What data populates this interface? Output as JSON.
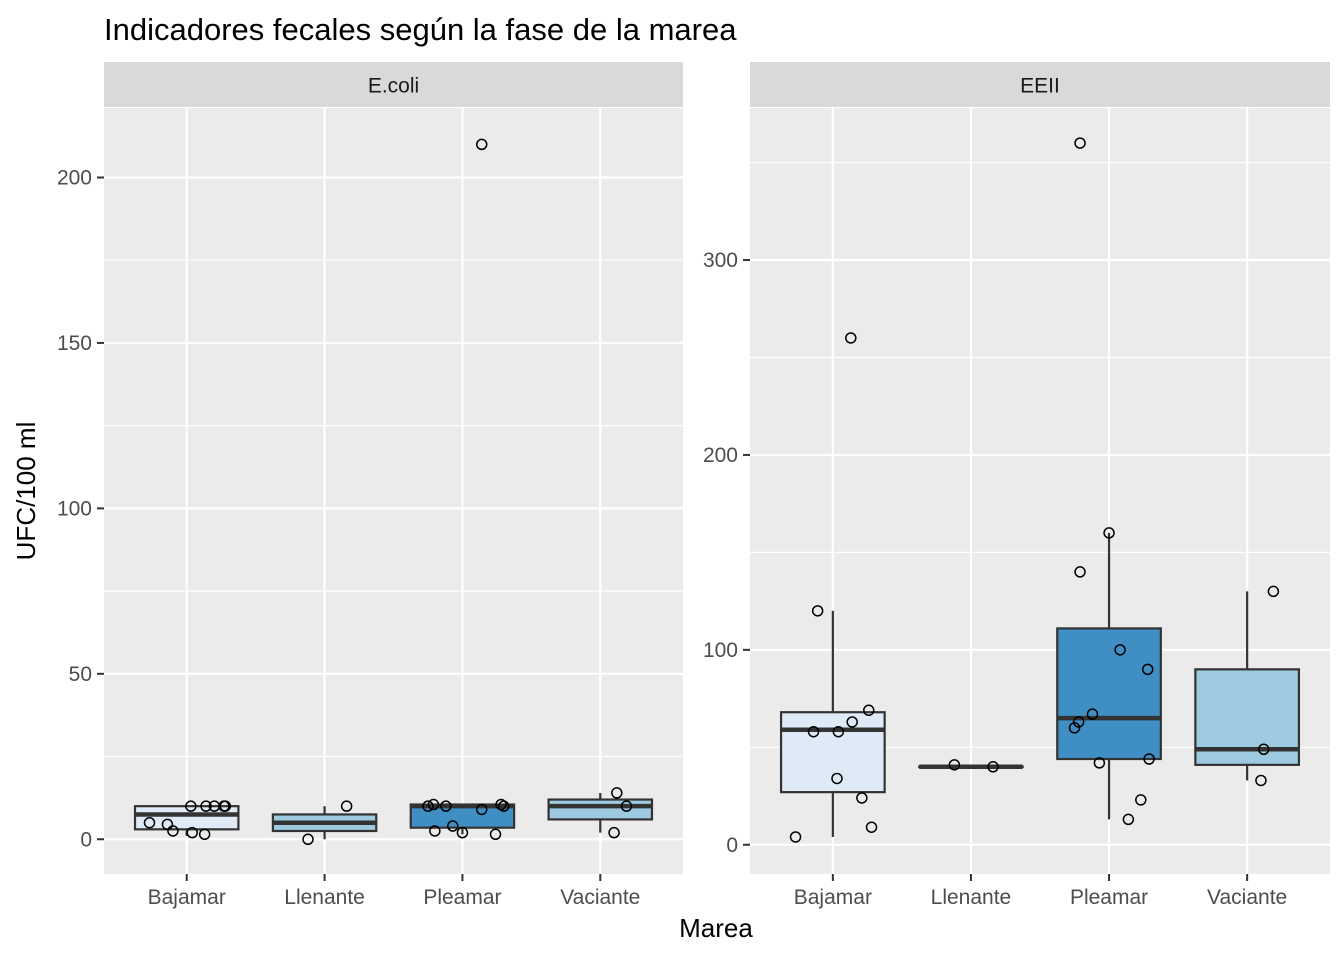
{
  "chart_data": {
    "type": "boxplot",
    "title": "Indicadores fecales según la fase de la marea",
    "xlabel": "Marea",
    "ylabel": "UFC/100 ml",
    "categories": [
      "Bajamar",
      "Llenante",
      "Pleamar",
      "Vaciante"
    ],
    "fill_colors": {
      "Bajamar": "#deebf7",
      "Llenante": "#9ecae1",
      "Pleamar": "#3f8fc4",
      "Vaciante": "#9ecae1"
    },
    "panels": [
      {
        "name": "E.coli",
        "ylim": [
          -10.5,
          221
        ],
        "yticks": [
          0,
          50,
          100,
          150,
          200
        ],
        "boxes": [
          {
            "category": "Bajamar",
            "q1": 3,
            "median": 7.5,
            "q3": 10,
            "whisker_low": 1,
            "whisker_high": 10
          },
          {
            "category": "Llenante",
            "q1": 2.5,
            "median": 5,
            "q3": 7.5,
            "whisker_low": 0,
            "whisker_high": 10
          },
          {
            "category": "Pleamar",
            "q1": 3.5,
            "median": 10,
            "q3": 10.5,
            "whisker_low": 1.5,
            "whisker_high": 10.5
          },
          {
            "category": "Vaciante",
            "q1": 6,
            "median": 10,
            "q3": 12,
            "whisker_low": 2,
            "whisker_high": 14
          }
        ],
        "points": [
          {
            "category": "Bajamar",
            "offset": -0.27,
            "value": 5
          },
          {
            "category": "Bajamar",
            "offset": -0.14,
            "value": 4.5
          },
          {
            "category": "Bajamar",
            "offset": -0.1,
            "value": 2.5
          },
          {
            "category": "Bajamar",
            "offset": 0.03,
            "value": 10
          },
          {
            "category": "Bajamar",
            "offset": 0.04,
            "value": 2
          },
          {
            "category": "Bajamar",
            "offset": 0.13,
            "value": 1.5
          },
          {
            "category": "Bajamar",
            "offset": 0.14,
            "value": 10
          },
          {
            "category": "Bajamar",
            "offset": 0.2,
            "value": 10
          },
          {
            "category": "Bajamar",
            "offset": 0.27,
            "value": 10
          },
          {
            "category": "Bajamar",
            "offset": 0.28,
            "value": 10
          },
          {
            "category": "Llenante",
            "offset": -0.12,
            "value": 0
          },
          {
            "category": "Llenante",
            "offset": 0.16,
            "value": 10
          },
          {
            "category": "Pleamar",
            "offset": -0.25,
            "value": 10
          },
          {
            "category": "Pleamar",
            "offset": -0.21,
            "value": 10.5
          },
          {
            "category": "Pleamar",
            "offset": -0.2,
            "value": 2.5
          },
          {
            "category": "Pleamar",
            "offset": -0.12,
            "value": 10
          },
          {
            "category": "Pleamar",
            "offset": -0.07,
            "value": 4
          },
          {
            "category": "Pleamar",
            "offset": 0.0,
            "value": 2
          },
          {
            "category": "Pleamar",
            "offset": 0.14,
            "value": 9
          },
          {
            "category": "Pleamar",
            "offset": 0.14,
            "value": 210
          },
          {
            "category": "Pleamar",
            "offset": 0.24,
            "value": 1.5
          },
          {
            "category": "Pleamar",
            "offset": 0.28,
            "value": 10.5
          },
          {
            "category": "Pleamar",
            "offset": 0.3,
            "value": 10
          },
          {
            "category": "Vaciante",
            "offset": 0.1,
            "value": 2
          },
          {
            "category": "Vaciante",
            "offset": 0.12,
            "value": 14
          },
          {
            "category": "Vaciante",
            "offset": 0.19,
            "value": 10
          }
        ]
      },
      {
        "name": "EEII",
        "ylim": [
          -15,
          378
        ],
        "yticks": [
          0,
          100,
          200,
          300
        ],
        "boxes": [
          {
            "category": "Bajamar",
            "q1": 27,
            "median": 59,
            "q3": 68,
            "whisker_low": 4,
            "whisker_high": 120
          },
          {
            "category": "Llenante",
            "q1": 40,
            "median": 40,
            "q3": 40,
            "whisker_low": 40,
            "whisker_high": 40
          },
          {
            "category": "Pleamar",
            "q1": 44,
            "median": 65,
            "q3": 111,
            "whisker_low": 13,
            "whisker_high": 160
          },
          {
            "category": "Vaciante",
            "q1": 41,
            "median": 49,
            "q3": 90,
            "whisker_low": 33,
            "whisker_high": 130
          }
        ],
        "points": [
          {
            "category": "Bajamar",
            "offset": -0.27,
            "value": 4
          },
          {
            "category": "Bajamar",
            "offset": -0.14,
            "value": 58
          },
          {
            "category": "Bajamar",
            "offset": -0.11,
            "value": 120
          },
          {
            "category": "Bajamar",
            "offset": 0.03,
            "value": 34
          },
          {
            "category": "Bajamar",
            "offset": 0.04,
            "value": 58
          },
          {
            "category": "Bajamar",
            "offset": 0.13,
            "value": 260
          },
          {
            "category": "Bajamar",
            "offset": 0.14,
            "value": 63
          },
          {
            "category": "Bajamar",
            "offset": 0.21,
            "value": 24
          },
          {
            "category": "Bajamar",
            "offset": 0.26,
            "value": 69
          },
          {
            "category": "Bajamar",
            "offset": 0.28,
            "value": 9
          },
          {
            "category": "Llenante",
            "offset": -0.12,
            "value": 41
          },
          {
            "category": "Llenante",
            "offset": 0.16,
            "value": 40
          },
          {
            "category": "Pleamar",
            "offset": -0.25,
            "value": 60
          },
          {
            "category": "Pleamar",
            "offset": -0.22,
            "value": 63
          },
          {
            "category": "Pleamar",
            "offset": -0.21,
            "value": 140
          },
          {
            "category": "Pleamar",
            "offset": -0.21,
            "value": 360
          },
          {
            "category": "Pleamar",
            "offset": -0.12,
            "value": 67
          },
          {
            "category": "Pleamar",
            "offset": -0.07,
            "value": 42
          },
          {
            "category": "Pleamar",
            "offset": 0.0,
            "value": 160
          },
          {
            "category": "Pleamar",
            "offset": 0.08,
            "value": 100
          },
          {
            "category": "Pleamar",
            "offset": 0.14,
            "value": 13
          },
          {
            "category": "Pleamar",
            "offset": 0.23,
            "value": 23
          },
          {
            "category": "Pleamar",
            "offset": 0.28,
            "value": 90
          },
          {
            "category": "Pleamar",
            "offset": 0.29,
            "value": 44
          },
          {
            "category": "Vaciante",
            "offset": 0.1,
            "value": 33
          },
          {
            "category": "Vaciante",
            "offset": 0.12,
            "value": 49
          },
          {
            "category": "Vaciante",
            "offset": 0.19,
            "value": 130
          }
        ]
      }
    ]
  }
}
